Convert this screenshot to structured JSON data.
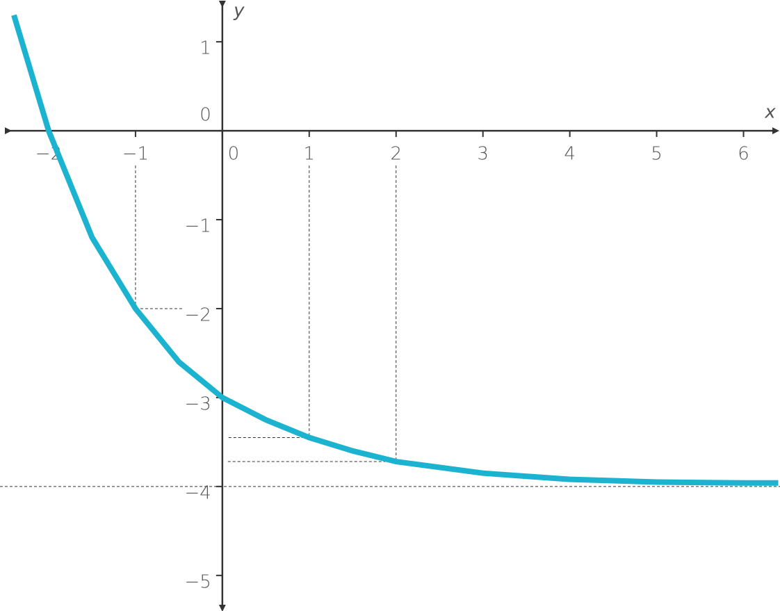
{
  "chart_data": {
    "type": "line",
    "x_label": "x",
    "y_label": "y",
    "xlim": [
      -2.56,
      6.42
    ],
    "ylim": [
      -5.4,
      1.47
    ],
    "xticks": [
      {
        "value": -2,
        "label": "−2"
      },
      {
        "value": -1,
        "label": "−1"
      },
      0,
      1,
      2,
      3,
      4,
      5,
      6
    ],
    "yticks": [
      1,
      0,
      {
        "value": -1,
        "label": "−1"
      },
      {
        "value": -2,
        "label": "−2"
      },
      {
        "value": -3,
        "label": "−3"
      },
      {
        "value": -4,
        "label": "−4"
      },
      {
        "value": -5,
        "label": "−5"
      }
    ],
    "series": [
      {
        "color": "#1bb3cf",
        "x": [
          -2.4,
          -2,
          -1.5,
          -1,
          -0.5,
          0,
          0.5,
          1,
          1.5,
          2,
          3,
          4,
          5,
          6,
          6.4
        ],
        "values": [
          1.3,
          0,
          -1.2,
          -2,
          -2.6,
          -3,
          -3.25,
          -3.45,
          -3.6,
          -3.72,
          -3.85,
          -3.92,
          -3.95,
          -3.96,
          -3.96
        ]
      }
    ],
    "guides": [
      {
        "x": -1,
        "y": -2
      },
      {
        "x": 1,
        "y": -3.45
      },
      {
        "x": 2,
        "y": -3.72
      }
    ],
    "asymptote": -4
  }
}
